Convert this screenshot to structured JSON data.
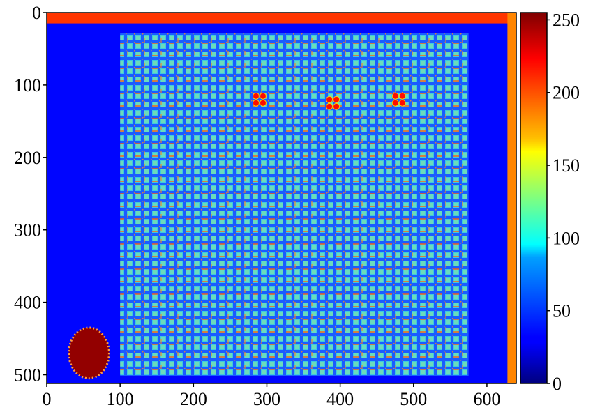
{
  "chart_data": {
    "type": "heatmap",
    "title": "",
    "xlabel": "",
    "ylabel": "",
    "colormap": "jet",
    "xlim": [
      0,
      640
    ],
    "ylim": [
      512,
      0
    ],
    "x_ticks": [
      0,
      100,
      200,
      300,
      400,
      500,
      600
    ],
    "y_ticks": [
      0,
      100,
      200,
      300,
      400,
      500
    ],
    "colorbar": {
      "range": [
        0,
        255
      ],
      "ticks": [
        0,
        50,
        100,
        150,
        200,
        250
      ]
    },
    "regions": [
      {
        "label": "background",
        "x": [
          0,
          640
        ],
        "y": [
          0,
          512
        ],
        "value": 30
      },
      {
        "label": "top strip",
        "x": [
          0,
          640
        ],
        "y": [
          0,
          15
        ],
        "value": 210
      },
      {
        "label": "right edge strip",
        "x": [
          628,
          640
        ],
        "y": [
          0,
          512
        ],
        "value": 190
      },
      {
        "label": "inner panel",
        "x": [
          100,
          575
        ],
        "y": [
          28,
          502
        ],
        "value": 90
      },
      {
        "label": "hot spot",
        "x": [
          30,
          85
        ],
        "y": [
          435,
          505
        ],
        "value": 250
      }
    ],
    "spots": [
      {
        "x": 290,
        "y": 120,
        "value": 220
      },
      {
        "x": 390,
        "y": 125,
        "value": 220
      },
      {
        "x": 480,
        "y": 120,
        "value": 220
      }
    ]
  }
}
